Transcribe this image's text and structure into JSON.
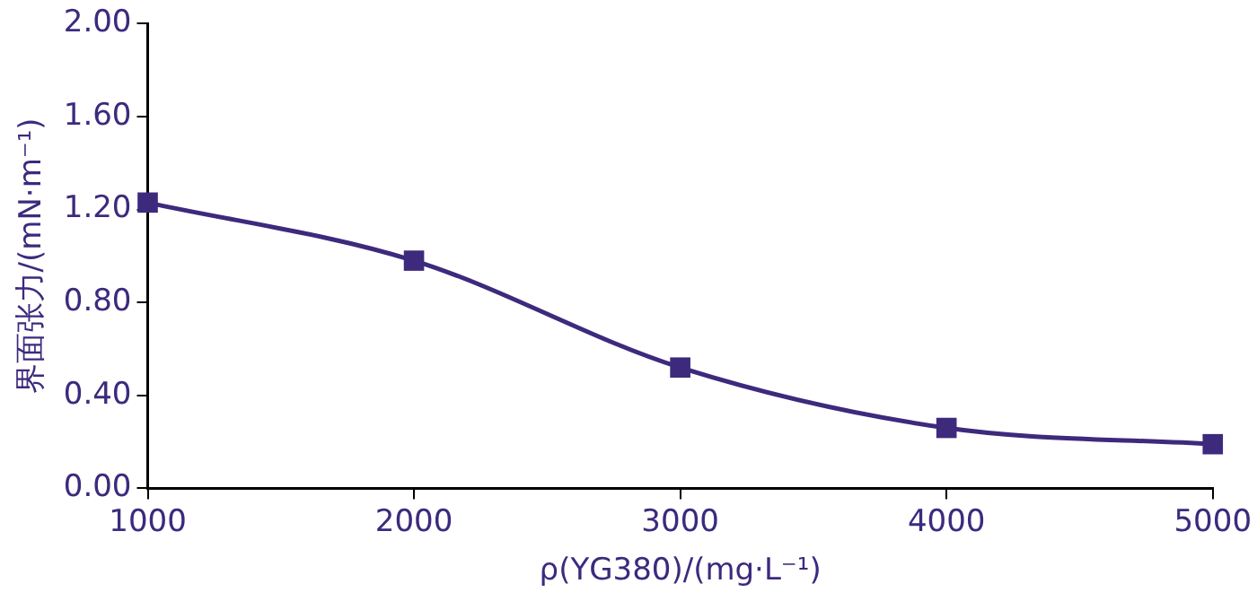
{
  "chart_data": {
    "type": "line",
    "xlabel": "ρ(YG380)/(mg·L⁻¹)",
    "ylabel": "界面张力/(mN·m⁻¹)",
    "x": [
      1000,
      2000,
      3000,
      4000,
      5000
    ],
    "series": [
      {
        "color": "#3d2a7d",
        "values": [
          1.23,
          0.98,
          0.52,
          0.26,
          0.19
        ]
      }
    ],
    "xlim": [
      1000,
      5000
    ],
    "xticks": [
      1000,
      2000,
      3000,
      4000,
      5000
    ],
    "ylim": [
      0,
      2
    ],
    "yticks": [
      {
        "value": 0,
        "label": "0.00"
      },
      {
        "value": 0.4,
        "label": "0.40"
      },
      {
        "value": 0.8,
        "label": "0.80"
      },
      {
        "value": 1.2,
        "label": "1.20"
      },
      {
        "value": 1.6,
        "label": "1.60"
      },
      {
        "value": 2,
        "label": "2.00"
      }
    ],
    "grid": false,
    "legend": false,
    "marker": "square",
    "line_style": "solid"
  }
}
